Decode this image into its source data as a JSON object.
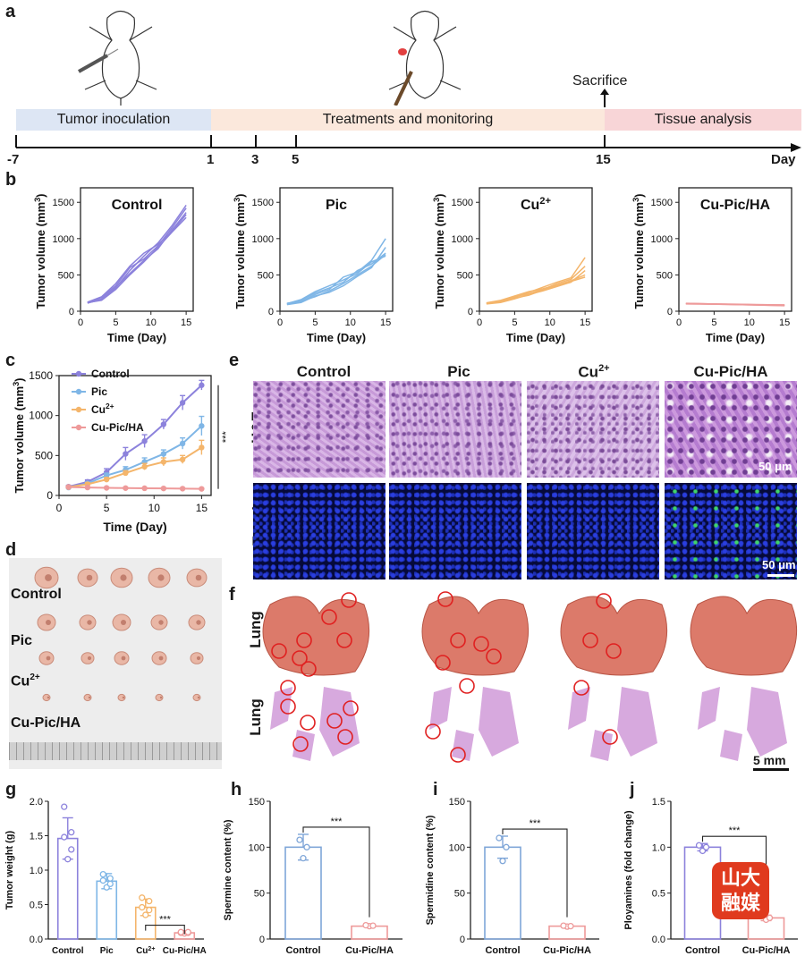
{
  "panels": {
    "a": "a",
    "b": "b",
    "c": "c",
    "d": "d",
    "e": "e",
    "f": "f",
    "g": "g",
    "h": "h",
    "i": "i",
    "j": "j"
  },
  "timeline": {
    "phases": [
      "Tumor inoculation",
      "Treatments and monitoring",
      "Tissue analysis"
    ],
    "ticks": [
      "-7",
      "1",
      "3",
      "5",
      "15"
    ],
    "axis_label": "Day",
    "sacrifice": "Sacrifice",
    "colors": {
      "inoculation": "#dde6f4",
      "treatment": "#fbe8dc",
      "tissue": "#f8d5d7"
    }
  },
  "groups": {
    "control": "Control",
    "pic": "Pic",
    "cu": "Cu",
    "cupic": "Cu-Pic/HA",
    "sup": "2+"
  },
  "colors": {
    "control": "#8c82dc",
    "pic": "#7fb6e6",
    "cu": "#f4b56b",
    "cupic": "#ee9a9a"
  },
  "axes": {
    "tumor_volume": "Tumor volume (mm",
    "tumor_volume_close": ")",
    "sup3": "3",
    "time": "Time (Day)"
  },
  "chart_data": [
    {
      "type": "line",
      "id": "b-control",
      "title": "Control",
      "xlabel": "Time (Day)",
      "ylabel": "Tumor volume (mm3)",
      "xlim": [
        0,
        16
      ],
      "ylim": [
        0,
        1700
      ],
      "x": [
        1,
        3,
        5,
        7,
        9,
        11,
        13,
        15
      ],
      "series": [
        {
          "values": [
            115,
            160,
            320,
            560,
            760,
            940,
            1180,
            1460
          ]
        },
        {
          "values": [
            120,
            190,
            350,
            600,
            720,
            900,
            1150,
            1420
          ]
        },
        {
          "values": [
            110,
            170,
            330,
            520,
            700,
            860,
            1120,
            1360
          ]
        },
        {
          "values": [
            125,
            200,
            380,
            620,
            800,
            920,
            1100,
            1330
          ]
        },
        {
          "values": [
            118,
            150,
            300,
            500,
            680,
            880,
            1090,
            1290
          ]
        }
      ]
    },
    {
      "type": "line",
      "id": "b-pic",
      "title": "Pic",
      "xlabel": "Time (Day)",
      "ylabel": "Tumor volume (mm3)",
      "xlim": [
        0,
        16
      ],
      "ylim": [
        0,
        1700
      ],
      "x": [
        1,
        3,
        5,
        7,
        9,
        11,
        13,
        15
      ],
      "series": [
        {
          "values": [
            100,
            130,
            230,
            300,
            470,
            540,
            700,
            1000
          ]
        },
        {
          "values": [
            95,
            150,
            250,
            320,
            400,
            560,
            650,
            800
          ]
        },
        {
          "values": [
            110,
            140,
            200,
            280,
            380,
            500,
            620,
            780
          ]
        },
        {
          "values": [
            105,
            160,
            270,
            350,
            430,
            520,
            680,
            760
          ]
        },
        {
          "values": [
            90,
            120,
            210,
            260,
            350,
            480,
            600,
            880
          ]
        }
      ]
    },
    {
      "type": "line",
      "id": "b-cu",
      "title": "Cu2+",
      "xlabel": "Time (Day)",
      "ylabel": "Tumor volume (mm3)",
      "xlim": [
        0,
        16
      ],
      "ylim": [
        0,
        1700
      ],
      "x": [
        1,
        3,
        5,
        7,
        9,
        11,
        13,
        15
      ],
      "series": [
        {
          "values": [
            105,
            130,
            190,
            260,
            330,
            400,
            460,
            740
          ]
        },
        {
          "values": [
            110,
            140,
            200,
            240,
            300,
            380,
            440,
            620
          ]
        },
        {
          "values": [
            100,
            120,
            170,
            230,
            280,
            340,
            400,
            560
          ]
        },
        {
          "values": [
            115,
            150,
            210,
            270,
            310,
            360,
            420,
            500
          ]
        },
        {
          "values": [
            108,
            135,
            180,
            220,
            290,
            350,
            410,
            470
          ]
        }
      ]
    },
    {
      "type": "line",
      "id": "b-cupic",
      "title": "Cu-Pic/HA",
      "xlabel": "Time (Day)",
      "ylabel": "Tumor volume (mm3)",
      "xlim": [
        0,
        16
      ],
      "ylim": [
        0,
        1700
      ],
      "x": [
        1,
        3,
        5,
        7,
        9,
        11,
        13,
        15
      ],
      "series": [
        {
          "values": [
            110,
            105,
            100,
            98,
            95,
            92,
            90,
            88
          ]
        },
        {
          "values": [
            105,
            102,
            98,
            95,
            92,
            88,
            85,
            82
          ]
        },
        {
          "values": [
            100,
            98,
            96,
            94,
            90,
            86,
            82,
            78
          ]
        },
        {
          "values": [
            108,
            104,
            100,
            96,
            92,
            90,
            86,
            84
          ]
        },
        {
          "values": [
            102,
            100,
            97,
            93,
            89,
            85,
            80,
            75
          ]
        }
      ]
    },
    {
      "type": "line",
      "id": "c",
      "xlabel": "Time (Day)",
      "ylabel": "Tumor volume (mm3)",
      "xlim": [
        0,
        16
      ],
      "ylim": [
        0,
        1500
      ],
      "legend": "top-left",
      "significance": "***",
      "x": [
        1,
        3,
        5,
        7,
        9,
        11,
        13,
        15
      ],
      "series": [
        {
          "name": "Control",
          "values": [
            110,
            170,
            290,
            520,
            680,
            890,
            1160,
            1380
          ],
          "error": [
            15,
            25,
            45,
            80,
            80,
            60,
            90,
            60
          ]
        },
        {
          "name": "Pic",
          "values": [
            100,
            150,
            250,
            320,
            420,
            520,
            650,
            870
          ],
          "error": [
            15,
            20,
            30,
            40,
            50,
            50,
            70,
            120
          ]
        },
        {
          "name": "Cu2+",
          "values": [
            105,
            140,
            200,
            280,
            360,
            420,
            450,
            600
          ],
          "error": [
            12,
            20,
            25,
            30,
            40,
            50,
            50,
            90
          ]
        },
        {
          "name": "Cu-Pic/HA",
          "values": [
            105,
            100,
            95,
            92,
            90,
            88,
            85,
            82
          ],
          "error": [
            8,
            8,
            8,
            8,
            8,
            8,
            8,
            8
          ]
        }
      ]
    },
    {
      "type": "bar",
      "id": "g",
      "ylabel": "Tumor weight (g)",
      "ylim": [
        0,
        2.0
      ],
      "categories": [
        "Control",
        "Pic",
        "Cu2+",
        "Cu-Pic/HA"
      ],
      "values": [
        1.46,
        0.84,
        0.46,
        0.09
      ],
      "error": [
        0.3,
        0.11,
        0.12,
        0.03
      ],
      "points": [
        [
          1.16,
          1.3,
          1.48,
          1.55,
          1.92
        ],
        [
          0.75,
          0.8,
          0.85,
          0.88,
          0.94
        ],
        [
          0.35,
          0.42,
          0.46,
          0.55,
          0.6
        ],
        [
          0.08,
          0.09,
          0.09,
          0.1,
          0.1
        ]
      ],
      "significance": "***"
    },
    {
      "type": "bar",
      "id": "h",
      "ylabel": "Spermine content (%)",
      "ylim": [
        0,
        150
      ],
      "categories": [
        "Control",
        "Cu-Pic/HA"
      ],
      "values": [
        100,
        14
      ],
      "error": [
        14,
        1
      ],
      "points": [
        [
          88,
          100,
          108
        ],
        [
          14,
          14.5,
          15
        ]
      ],
      "significance": "***"
    },
    {
      "type": "bar",
      "id": "i",
      "ylabel": "Spermidine content (%)",
      "ylim": [
        0,
        150
      ],
      "categories": [
        "Control",
        "Cu-Pic/HA"
      ],
      "values": [
        100,
        14
      ],
      "error": [
        12,
        1
      ],
      "points": [
        [
          85,
          100,
          110
        ],
        [
          13.5,
          14,
          14.5
        ]
      ],
      "significance": "***"
    },
    {
      "type": "bar",
      "id": "j",
      "ylabel": "Ployamines (fold change)",
      "ylim": [
        0,
        1.5
      ],
      "categories": [
        "Control",
        "Cu-Pic/HA"
      ],
      "values": [
        1.0,
        0.23
      ],
      "error": [
        0.04,
        0.03
      ],
      "points": [
        [
          0.96,
          1.0,
          1.02
        ],
        [
          0.21,
          0.23,
          0.25
        ]
      ],
      "significance": "***"
    }
  ],
  "histology": {
    "rows": [
      "H&E",
      "Tunel"
    ],
    "scale": "50 μm"
  },
  "lung": {
    "row_label": "Lung",
    "scale": "5 mm"
  },
  "watermark": "山大融媒"
}
